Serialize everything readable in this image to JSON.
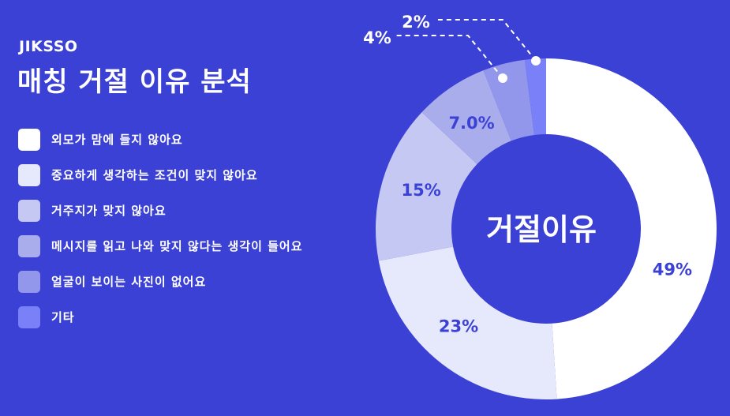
{
  "logo": "JIKSSO",
  "title": "매칭 거절 이유 분석",
  "chart_data": {
    "type": "pie",
    "subtype": "donut",
    "center_label": "거절이유",
    "categories": [
      "외모가 맘에 들지 않아요",
      "중요하게 생각하는 조건이 맞지 않아요",
      "거주지가 맞지 않아요",
      "메시지를 읽고 나와 맞지 않다는 생각이 들어요",
      "얼굴이 보이는 사진이 없어요",
      "기타"
    ],
    "values": [
      49,
      23,
      15,
      7.0,
      4,
      2
    ],
    "data_labels": [
      "49%",
      "23%",
      "15%",
      "7.0%",
      "4%",
      "2%"
    ],
    "colors": [
      "#ffffff",
      "#e6e8fb",
      "#c6c8f4",
      "#a9adec",
      "#9297ec",
      "#7a80f8"
    ],
    "background": "#3b41d4",
    "legend_position": "left"
  }
}
